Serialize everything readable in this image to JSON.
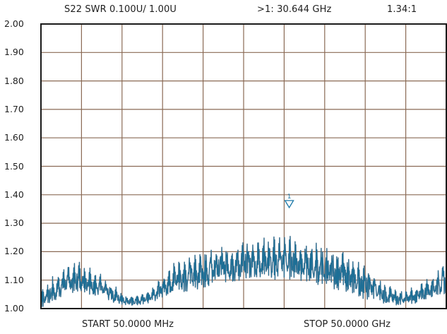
{
  "header": {
    "trace": "S22 SWR 0.100U/  1.00U",
    "marker_readout": ">1:  30.644 GHz",
    "marker_value": "1.34:1"
  },
  "footer": {
    "start": "START 50.0000 MHz",
    "stop": "STOP 50.0000 GHz"
  },
  "colors": {
    "grid": "#8a6a55",
    "frame": "#1a1a1a",
    "trace_fill": "#1d6f96",
    "trace_edge": "#5d6f86",
    "marker": "#1a78a8"
  },
  "chart_data": {
    "type": "line",
    "ylabel": "",
    "xlabel": "",
    "ylim": [
      1.0,
      2.0
    ],
    "xlim": [
      0.05,
      50.0
    ],
    "y_ticks": [
      "2.00",
      "1.90",
      "1.80",
      "1.70",
      "1.60",
      "1.50",
      "1.40",
      "1.30",
      "1.20",
      "1.10",
      "1.00"
    ],
    "x_divisions": 10,
    "y_divisions": 10,
    "grid": true,
    "series": [
      {
        "name": "",
        "x": [
          0.05,
          1.55,
          3.05,
          4.55,
          6.04,
          7.54,
          9.04,
          10.54,
          12.04,
          13.54,
          15.04,
          16.53,
          18.03,
          19.53,
          21.03,
          22.53,
          24.03,
          25.52,
          27.02,
          28.52,
          30.02,
          31.52,
          33.02,
          34.51,
          36.01,
          37.51,
          39.01,
          40.51,
          42.01,
          43.5,
          45.0,
          46.5,
          48.0,
          49.5,
          50.0
        ],
        "y_low": [
          1.0,
          1.02,
          1.05,
          1.06,
          1.05,
          1.04,
          1.02,
          1.01,
          1.01,
          1.02,
          1.04,
          1.06,
          1.06,
          1.07,
          1.08,
          1.09,
          1.09,
          1.1,
          1.1,
          1.1,
          1.1,
          1.1,
          1.09,
          1.08,
          1.07,
          1.06,
          1.04,
          1.03,
          1.02,
          1.01,
          1.01,
          1.02,
          1.04,
          1.05,
          1.05
        ],
        "y_high": [
          1.1,
          1.14,
          1.18,
          1.2,
          1.18,
          1.14,
          1.1,
          1.06,
          1.06,
          1.09,
          1.14,
          1.2,
          1.23,
          1.25,
          1.26,
          1.27,
          1.28,
          1.29,
          1.3,
          1.3,
          1.31,
          1.3,
          1.28,
          1.27,
          1.26,
          1.24,
          1.21,
          1.18,
          1.13,
          1.09,
          1.08,
          1.1,
          1.14,
          1.18,
          1.2
        ]
      }
    ],
    "markers": [
      {
        "label": "1",
        "x": 30.644,
        "y": 1.34
      }
    ]
  }
}
